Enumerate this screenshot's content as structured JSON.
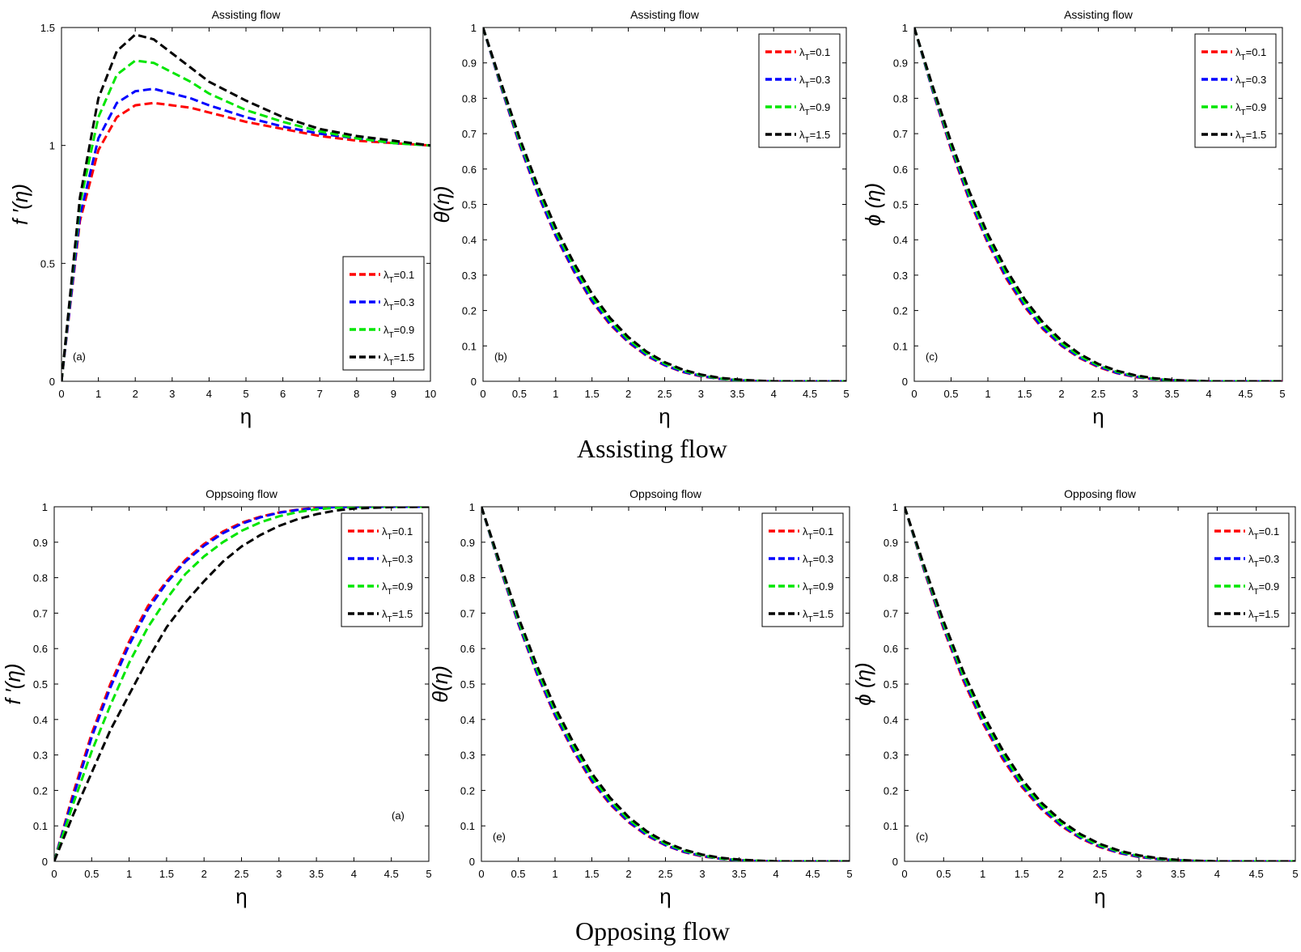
{
  "figure": {
    "row_captions": [
      "Assisting flow",
      "Opposing flow"
    ]
  },
  "colors": {
    "series": [
      "#ff0000",
      "#0000ff",
      "#00e600",
      "#000000"
    ]
  },
  "chart_data": [
    {
      "type": "line",
      "title": "Assisting flow",
      "panel_label": "(a)",
      "xlabel": "η",
      "ylabel": "f ′(η)",
      "xlim": [
        0,
        10
      ],
      "ylim": [
        0,
        1.5
      ],
      "xticks": [
        0,
        1,
        2,
        3,
        4,
        5,
        6,
        7,
        8,
        9,
        10
      ],
      "xtick_labels": [
        "0",
        "1",
        "2",
        "3",
        "4",
        "5",
        "6",
        "7",
        "8",
        "9",
        "10"
      ],
      "yticks": [
        0,
        0.5,
        1,
        1.5
      ],
      "ytick_labels": [
        "0",
        "0.5",
        "1",
        "1.5"
      ],
      "legend": "bottom-right",
      "label_pos": "bottom-left",
      "x": [
        0,
        0.5,
        1,
        1.5,
        2,
        2.5,
        3,
        3.5,
        4,
        5,
        6,
        7,
        8,
        9,
        10
      ],
      "series": [
        {
          "name": "λT=0.1",
          "legend_sym": "λ",
          "legend_sub": "T",
          "legend_val": "=0.1",
          "values": [
            0,
            0.68,
            0.98,
            1.12,
            1.17,
            1.18,
            1.17,
            1.16,
            1.14,
            1.1,
            1.07,
            1.04,
            1.02,
            1.01,
            1.0
          ]
        },
        {
          "name": "λT=0.3",
          "legend_sym": "λ",
          "legend_sub": "T",
          "legend_val": "=0.3",
          "values": [
            0,
            0.7,
            1.03,
            1.18,
            1.23,
            1.24,
            1.22,
            1.2,
            1.17,
            1.12,
            1.08,
            1.05,
            1.03,
            1.01,
            1.0
          ]
        },
        {
          "name": "λT=0.9",
          "legend_sym": "λ",
          "legend_sub": "T",
          "legend_val": "=0.9",
          "values": [
            0,
            0.75,
            1.12,
            1.3,
            1.36,
            1.35,
            1.31,
            1.27,
            1.22,
            1.15,
            1.1,
            1.06,
            1.03,
            1.01,
            1.0
          ]
        },
        {
          "name": "λT=1.5",
          "legend_sym": "λ",
          "legend_sub": "T",
          "legend_val": "=1.5",
          "values": [
            0,
            0.78,
            1.2,
            1.4,
            1.47,
            1.45,
            1.39,
            1.33,
            1.27,
            1.19,
            1.12,
            1.07,
            1.04,
            1.02,
            1.0
          ]
        }
      ]
    },
    {
      "type": "line",
      "title": "Assisting flow",
      "panel_label": "(b)",
      "xlabel": "η",
      "ylabel": "θ(η)",
      "xlim": [
        0,
        5
      ],
      "ylim": [
        0,
        1
      ],
      "xticks": [
        0,
        0.5,
        1,
        1.5,
        2,
        2.5,
        3,
        3.5,
        4,
        4.5,
        5
      ],
      "xtick_labels": [
        "0",
        "0.5",
        "1",
        "1.5",
        "2",
        "2.5",
        "3",
        "3.5",
        "4",
        "4.5",
        "5"
      ],
      "yticks": [
        0,
        0.1,
        0.2,
        0.3,
        0.4,
        0.5,
        0.6,
        0.7,
        0.8,
        0.9,
        1
      ],
      "ytick_labels": [
        "0",
        "0.1",
        "0.2",
        "0.3",
        "0.4",
        "0.5",
        "0.6",
        "0.7",
        "0.8",
        "0.9",
        "1"
      ],
      "legend": "top-right",
      "label_pos": "bottom-left",
      "x": [
        0,
        0.25,
        0.5,
        0.75,
        1,
        1.25,
        1.5,
        1.75,
        2,
        2.25,
        2.5,
        2.75,
        3,
        3.25,
        3.5,
        3.75,
        4,
        4.5,
        5
      ],
      "series": [
        {
          "name": "λT=0.1",
          "legend_sym": "λ",
          "legend_sub": "T",
          "legend_val": "=0.1",
          "values": [
            1,
            0.83,
            0.67,
            0.53,
            0.41,
            0.31,
            0.225,
            0.16,
            0.11,
            0.072,
            0.045,
            0.026,
            0.014,
            0.007,
            0.003,
            0.001,
            0,
            0,
            0
          ]
        },
        {
          "name": "λT=0.3",
          "legend_sym": "λ",
          "legend_sub": "T",
          "legend_val": "=0.3",
          "values": [
            1,
            0.832,
            0.673,
            0.533,
            0.413,
            0.313,
            0.228,
            0.163,
            0.112,
            0.074,
            0.046,
            0.027,
            0.015,
            0.007,
            0.003,
            0.001,
            0,
            0,
            0
          ]
        },
        {
          "name": "λT=0.9",
          "legend_sym": "λ",
          "legend_sub": "T",
          "legend_val": "=0.9",
          "values": [
            1,
            0.838,
            0.682,
            0.545,
            0.425,
            0.325,
            0.238,
            0.171,
            0.118,
            0.079,
            0.05,
            0.03,
            0.017,
            0.008,
            0.004,
            0.0015,
            0,
            0,
            0
          ]
        },
        {
          "name": "λT=1.5",
          "legend_sym": "λ",
          "legend_sub": "T",
          "legend_val": "=1.5",
          "values": [
            1,
            0.843,
            0.69,
            0.555,
            0.435,
            0.335,
            0.248,
            0.179,
            0.125,
            0.084,
            0.054,
            0.033,
            0.019,
            0.01,
            0.005,
            0.002,
            0,
            0,
            0
          ]
        }
      ]
    },
    {
      "type": "line",
      "title": "Assisting flow",
      "panel_label": "(c)",
      "xlabel": "η",
      "ylabel": "ϕ (η)",
      "xlim": [
        0,
        5
      ],
      "ylim": [
        0,
        1
      ],
      "xticks": [
        0,
        0.5,
        1,
        1.5,
        2,
        2.5,
        3,
        3.5,
        4,
        4.5,
        5
      ],
      "xtick_labels": [
        "0",
        "0.5",
        "1",
        "1.5",
        "2",
        "2.5",
        "3",
        "3.5",
        "4",
        "4.5",
        "5"
      ],
      "yticks": [
        0,
        0.1,
        0.2,
        0.3,
        0.4,
        0.5,
        0.6,
        0.7,
        0.8,
        0.9,
        1
      ],
      "ytick_labels": [
        "0",
        "0.1",
        "0.2",
        "0.3",
        "0.4",
        "0.5",
        "0.6",
        "0.7",
        "0.8",
        "0.9",
        "1"
      ],
      "legend": "top-right",
      "label_pos": "bottom-left",
      "x": [
        0,
        0.25,
        0.5,
        0.75,
        1,
        1.25,
        1.5,
        1.75,
        2,
        2.25,
        2.5,
        2.75,
        3,
        3.25,
        3.5,
        3.75,
        4,
        4.5,
        5
      ],
      "series": [
        {
          "name": "λT=0.1",
          "legend_sym": "λ",
          "legend_sub": "T",
          "legend_val": "=0.1",
          "values": [
            1,
            0.82,
            0.655,
            0.51,
            0.39,
            0.29,
            0.21,
            0.147,
            0.1,
            0.065,
            0.04,
            0.023,
            0.012,
            0.006,
            0.003,
            0.001,
            0,
            0,
            0
          ]
        },
        {
          "name": "λT=0.3",
          "legend_sym": "λ",
          "legend_sub": "T",
          "legend_val": "=0.3",
          "values": [
            1,
            0.822,
            0.66,
            0.515,
            0.395,
            0.295,
            0.214,
            0.15,
            0.102,
            0.067,
            0.042,
            0.024,
            0.013,
            0.006,
            0.003,
            0.001,
            0,
            0,
            0
          ]
        },
        {
          "name": "λT=0.9",
          "legend_sym": "λ",
          "legend_sub": "T",
          "legend_val": "=0.9",
          "values": [
            1,
            0.828,
            0.668,
            0.525,
            0.405,
            0.305,
            0.222,
            0.158,
            0.108,
            0.071,
            0.045,
            0.027,
            0.015,
            0.007,
            0.003,
            0.001,
            0,
            0,
            0
          ]
        },
        {
          "name": "λT=1.5",
          "legend_sym": "λ",
          "legend_sub": "T",
          "legend_val": "=1.5",
          "values": [
            1,
            0.834,
            0.677,
            0.536,
            0.416,
            0.316,
            0.232,
            0.166,
            0.115,
            0.077,
            0.049,
            0.03,
            0.017,
            0.009,
            0.004,
            0.0015,
            0,
            0,
            0
          ]
        }
      ]
    },
    {
      "type": "line",
      "title": "Oppsoing flow",
      "panel_label": "(a)",
      "xlabel": "η",
      "ylabel": "f ′(η)",
      "xlim": [
        0,
        5
      ],
      "ylim": [
        0,
        1
      ],
      "xticks": [
        0,
        0.5,
        1,
        1.5,
        2,
        2.5,
        3,
        3.5,
        4,
        4.5,
        5
      ],
      "xtick_labels": [
        "0",
        "0.5",
        "1",
        "1.5",
        "2",
        "2.5",
        "3",
        "3.5",
        "4",
        "4.5",
        "5"
      ],
      "yticks": [
        0,
        0.1,
        0.2,
        0.3,
        0.4,
        0.5,
        0.6,
        0.7,
        0.8,
        0.9,
        1
      ],
      "ytick_labels": [
        "0",
        "0.1",
        "0.2",
        "0.3",
        "0.4",
        "0.5",
        "0.6",
        "0.7",
        "0.8",
        "0.9",
        "1"
      ],
      "legend": "top-right",
      "label_pos": "bottom-right",
      "x": [
        0,
        0.25,
        0.5,
        0.75,
        1,
        1.25,
        1.5,
        1.75,
        2,
        2.25,
        2.5,
        2.75,
        3,
        3.25,
        3.5,
        3.75,
        4,
        4.5,
        5
      ],
      "series": [
        {
          "name": "λT=0.1",
          "legend_sym": "λ",
          "legend_sub": "T",
          "legend_val": "=0.1",
          "values": [
            0,
            0.19,
            0.36,
            0.5,
            0.62,
            0.72,
            0.79,
            0.85,
            0.895,
            0.93,
            0.955,
            0.972,
            0.984,
            0.992,
            0.997,
            0.999,
            1,
            1,
            1
          ]
        },
        {
          "name": "λT=0.3",
          "legend_sym": "λ",
          "legend_sub": "T",
          "legend_val": "=0.3",
          "values": [
            0,
            0.18,
            0.35,
            0.49,
            0.61,
            0.71,
            0.785,
            0.845,
            0.89,
            0.925,
            0.952,
            0.97,
            0.983,
            0.991,
            0.996,
            0.999,
            1,
            1,
            1
          ]
        },
        {
          "name": "λT=0.9",
          "legend_sym": "λ",
          "legend_sub": "T",
          "legend_val": "=0.9",
          "values": [
            0,
            0.16,
            0.31,
            0.44,
            0.56,
            0.66,
            0.74,
            0.81,
            0.86,
            0.9,
            0.932,
            0.956,
            0.973,
            0.985,
            0.993,
            0.997,
            0.999,
            1,
            1
          ]
        },
        {
          "name": "λT=1.5",
          "legend_sym": "λ",
          "legend_sub": "T",
          "legend_val": "=1.5",
          "values": [
            0,
            0.13,
            0.25,
            0.37,
            0.47,
            0.57,
            0.66,
            0.73,
            0.79,
            0.845,
            0.888,
            0.92,
            0.946,
            0.965,
            0.979,
            0.989,
            0.995,
            0.999,
            1
          ]
        }
      ]
    },
    {
      "type": "line",
      "title": "Oppsoing flow",
      "panel_label": "(e)",
      "xlabel": "η",
      "ylabel": "θ(η)",
      "xlim": [
        0,
        5
      ],
      "ylim": [
        0,
        1
      ],
      "xticks": [
        0,
        0.5,
        1,
        1.5,
        2,
        2.5,
        3,
        3.5,
        4,
        4.5,
        5
      ],
      "xtick_labels": [
        "0",
        "0.5",
        "1",
        "1.5",
        "2",
        "2.5",
        "3",
        "3.5",
        "4",
        "4.5",
        "5"
      ],
      "yticks": [
        0,
        0.1,
        0.2,
        0.3,
        0.4,
        0.5,
        0.6,
        0.7,
        0.8,
        0.9,
        1
      ],
      "ytick_labels": [
        "0",
        "0.1",
        "0.2",
        "0.3",
        "0.4",
        "0.5",
        "0.6",
        "0.7",
        "0.8",
        "0.9",
        "1"
      ],
      "legend": "top-right",
      "label_pos": "bottom-left",
      "x": [
        0,
        0.25,
        0.5,
        0.75,
        1,
        1.25,
        1.5,
        1.75,
        2,
        2.25,
        2.5,
        2.75,
        3,
        3.25,
        3.5,
        3.75,
        4,
        4.5,
        5
      ],
      "series": [
        {
          "name": "λT=0.1",
          "legend_sym": "λ",
          "legend_sub": "T",
          "legend_val": "=0.1",
          "values": [
            1,
            0.83,
            0.67,
            0.53,
            0.41,
            0.31,
            0.225,
            0.16,
            0.11,
            0.072,
            0.045,
            0.026,
            0.014,
            0.007,
            0.003,
            0.001,
            0,
            0,
            0
          ]
        },
        {
          "name": "λT=0.3",
          "legend_sym": "λ",
          "legend_sub": "T",
          "legend_val": "=0.3",
          "values": [
            1,
            0.832,
            0.673,
            0.533,
            0.414,
            0.314,
            0.229,
            0.163,
            0.112,
            0.074,
            0.046,
            0.027,
            0.015,
            0.007,
            0.003,
            0.001,
            0,
            0,
            0
          ]
        },
        {
          "name": "λT=0.9",
          "legend_sym": "λ",
          "legend_sub": "T",
          "legend_val": "=0.9",
          "values": [
            1,
            0.837,
            0.681,
            0.543,
            0.424,
            0.324,
            0.238,
            0.171,
            0.118,
            0.079,
            0.05,
            0.03,
            0.017,
            0.008,
            0.004,
            0.0015,
            0,
            0,
            0
          ]
        },
        {
          "name": "λT=1.5",
          "legend_sym": "λ",
          "legend_sub": "T",
          "legend_val": "=1.5",
          "values": [
            1,
            0.843,
            0.69,
            0.554,
            0.435,
            0.335,
            0.248,
            0.179,
            0.125,
            0.084,
            0.054,
            0.033,
            0.019,
            0.01,
            0.005,
            0.002,
            0,
            0,
            0
          ]
        }
      ]
    },
    {
      "type": "line",
      "title": "Opposing flow",
      "panel_label": "(c)",
      "xlabel": "η",
      "ylabel": "ϕ (η)",
      "xlim": [
        0,
        5
      ],
      "ylim": [
        0,
        1
      ],
      "xticks": [
        0,
        0.5,
        1,
        1.5,
        2,
        2.5,
        3,
        3.5,
        4,
        4.5,
        5
      ],
      "xtick_labels": [
        "0",
        "0.5",
        "1",
        "1.5",
        "2",
        "2.5",
        "3",
        "3.5",
        "4",
        "4.5",
        "5"
      ],
      "yticks": [
        0,
        0.1,
        0.2,
        0.3,
        0.4,
        0.5,
        0.6,
        0.7,
        0.8,
        0.9,
        1
      ],
      "ytick_labels": [
        "0",
        "0.1",
        "0.2",
        "0.3",
        "0.4",
        "0.5",
        "0.6",
        "0.7",
        "0.8",
        "0.9",
        "1"
      ],
      "legend": "top-right",
      "label_pos": "bottom-left",
      "x": [
        0,
        0.25,
        0.5,
        0.75,
        1,
        1.25,
        1.5,
        1.75,
        2,
        2.25,
        2.5,
        2.75,
        3,
        3.25,
        3.5,
        3.75,
        4,
        4.5,
        5
      ],
      "series": [
        {
          "name": "λT=0.1",
          "legend_sym": "λ",
          "legend_sub": "T",
          "legend_val": "=0.1",
          "values": [
            1,
            0.82,
            0.655,
            0.51,
            0.39,
            0.29,
            0.21,
            0.147,
            0.1,
            0.065,
            0.04,
            0.023,
            0.012,
            0.006,
            0.003,
            0.001,
            0,
            0,
            0
          ]
        },
        {
          "name": "λT=0.3",
          "legend_sym": "λ",
          "legend_sub": "T",
          "legend_val": "=0.3",
          "values": [
            1,
            0.823,
            0.66,
            0.516,
            0.396,
            0.296,
            0.215,
            0.151,
            0.103,
            0.067,
            0.042,
            0.024,
            0.013,
            0.006,
            0.003,
            0.001,
            0,
            0,
            0
          ]
        },
        {
          "name": "λT=0.9",
          "legend_sym": "λ",
          "legend_sub": "T",
          "legend_val": "=0.9",
          "values": [
            1,
            0.828,
            0.668,
            0.525,
            0.405,
            0.305,
            0.222,
            0.158,
            0.108,
            0.071,
            0.045,
            0.027,
            0.015,
            0.007,
            0.003,
            0.001,
            0,
            0,
            0
          ]
        },
        {
          "name": "λT=1.5",
          "legend_sym": "λ",
          "legend_sub": "T",
          "legend_val": "=1.5",
          "values": [
            1,
            0.834,
            0.677,
            0.536,
            0.416,
            0.316,
            0.232,
            0.166,
            0.115,
            0.077,
            0.049,
            0.03,
            0.017,
            0.009,
            0.004,
            0.0015,
            0,
            0,
            0
          ]
        }
      ]
    }
  ]
}
